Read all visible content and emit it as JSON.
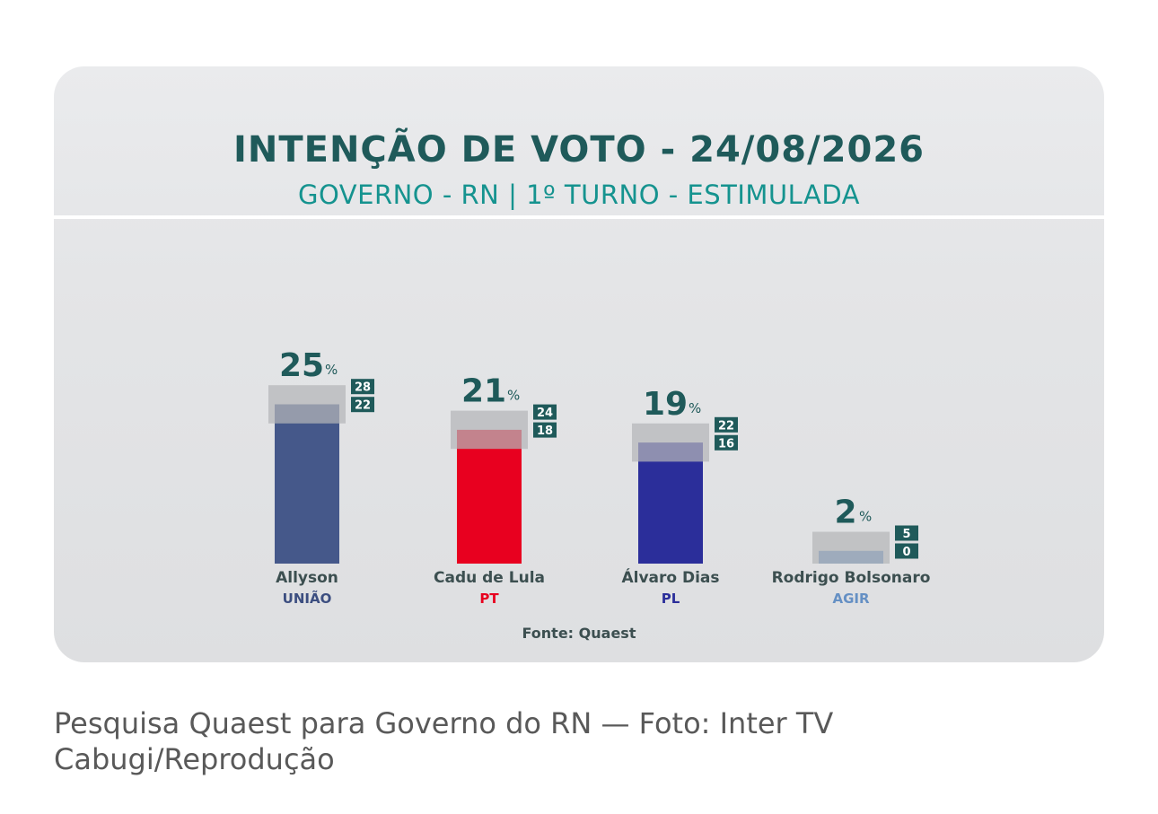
{
  "chart_data": {
    "type": "bar",
    "title": "INTENÇÃO DE VOTO - 24/08/2026",
    "subtitle": "GOVERNO - RN | 1º TURNO - ESTIMULADA",
    "percent_sign": "%",
    "categories": [
      "Allyson",
      "Cadu de Lula",
      "Álvaro Dias",
      "Rodrigo Bolsonaro"
    ],
    "parties": [
      "UNIÃO",
      "PT",
      "PL",
      "AGIR"
    ],
    "values": [
      25,
      21,
      19,
      2
    ],
    "value_labels": [
      "25",
      "21",
      "19",
      "2"
    ],
    "margin_high": [
      28,
      24,
      22,
      5
    ],
    "margin_low": [
      22,
      18,
      16,
      0
    ],
    "margin_high_labels": [
      "28",
      "24",
      "22",
      "5"
    ],
    "margin_low_labels": [
      "22",
      "18",
      "16",
      "0"
    ],
    "bar_colors": [
      "#45588a",
      "#e8001f",
      "#2b2e9a",
      "#6590c4"
    ],
    "party_colors": [
      "#3c4e80",
      "#e8001f",
      "#2b2e9a",
      "#6590c4"
    ],
    "margin_color": "#b4b5b8",
    "label_color": "#3c4f50",
    "value_color": "#1f5a5a",
    "badge_color": "#1f5a5a",
    "source": "Fonte: Quaest"
  },
  "caption": "Pesquisa Quaest para Governo do RN — Foto: Inter TV Cabugi/Reprodução"
}
